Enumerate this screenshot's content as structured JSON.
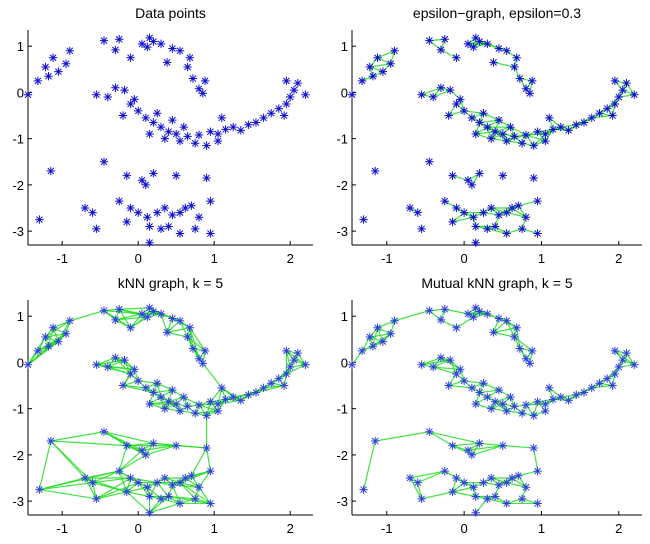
{
  "chart_data": [
    {
      "type": "scatter",
      "title": "Data points",
      "xlim": [
        -1.45,
        2.3
      ],
      "ylim": [
        -3.3,
        1.35
      ],
      "xticks": [
        -1,
        0,
        1,
        2
      ],
      "yticks": [
        1,
        0,
        -1,
        -2,
        -3
      ],
      "graph": "none",
      "marker": "asterisk",
      "marker_color": "#1010d0",
      "edge_color": "#22dd22"
    },
    {
      "type": "scatter",
      "title": "epsilon−graph, epsilon=0.3",
      "xlim": [
        -1.45,
        2.3
      ],
      "ylim": [
        -3.3,
        1.35
      ],
      "xticks": [
        -1,
        0,
        1,
        2
      ],
      "yticks": [
        1,
        0,
        -1,
        -2,
        -3
      ],
      "graph": "epsilon",
      "epsilon": 0.3,
      "marker": "asterisk",
      "marker_color": "#1010d0",
      "edge_color": "#22dd22"
    },
    {
      "type": "scatter",
      "title": "kNN graph, k = 5",
      "xlim": [
        -1.45,
        2.3
      ],
      "ylim": [
        -3.3,
        1.35
      ],
      "xticks": [
        -1,
        0,
        1,
        2
      ],
      "yticks": [
        1,
        0,
        -1,
        -2,
        -3
      ],
      "graph": "knn",
      "k": 5,
      "marker": "asterisk",
      "marker_color": "#3040e0",
      "edge_color": "#22dd22"
    },
    {
      "type": "scatter",
      "title": "Mutual kNN graph, k = 5",
      "xlim": [
        -1.45,
        2.3
      ],
      "ylim": [
        -3.3,
        1.35
      ],
      "xticks": [
        -1,
        0,
        1,
        2
      ],
      "yticks": [
        1,
        0,
        -1,
        -2,
        -3
      ],
      "graph": "mutual_knn",
      "k": 5,
      "marker": "asterisk",
      "marker_color": "#3040e0",
      "edge_color": "#22dd22"
    }
  ],
  "points": [
    [
      -1.45,
      -0.05
    ],
    [
      -1.32,
      0.25
    ],
    [
      -1.22,
      0.55
    ],
    [
      -1.12,
      0.75
    ],
    [
      -1.05,
      0.45
    ],
    [
      -1.18,
      0.35
    ],
    [
      -0.9,
      0.9
    ],
    [
      -0.95,
      0.62
    ],
    [
      -0.45,
      1.12
    ],
    [
      -0.3,
      0.92
    ],
    [
      -0.25,
      1.15
    ],
    [
      -0.1,
      0.75
    ],
    [
      0.05,
      1.05
    ],
    [
      0.15,
      1.18
    ],
    [
      0.2,
      1.1
    ],
    [
      0.3,
      1.05
    ],
    [
      0.38,
      0.65
    ],
    [
      0.45,
      0.95
    ],
    [
      0.55,
      0.9
    ],
    [
      0.65,
      0.55
    ],
    [
      0.72,
      0.3
    ],
    [
      0.8,
      0.08
    ],
    [
      0.85,
      -0.02
    ],
    [
      0.88,
      0.25
    ],
    [
      0.68,
      0.75
    ],
    [
      0.12,
      0.98
    ],
    [
      -0.55,
      -0.05
    ],
    [
      -0.4,
      -0.1
    ],
    [
      -0.3,
      0.1
    ],
    [
      -0.18,
      0.05
    ],
    [
      -0.1,
      -0.25
    ],
    [
      0.0,
      -0.4
    ],
    [
      0.1,
      -0.55
    ],
    [
      0.2,
      -0.65
    ],
    [
      0.3,
      -0.75
    ],
    [
      0.4,
      -0.85
    ],
    [
      0.5,
      -0.9
    ],
    [
      0.55,
      -1.05
    ],
    [
      0.65,
      -0.95
    ],
    [
      0.75,
      -1.1
    ],
    [
      0.8,
      -0.92
    ],
    [
      0.95,
      -0.85
    ],
    [
      1.05,
      -0.9
    ],
    [
      1.15,
      -0.8
    ],
    [
      1.25,
      -0.75
    ],
    [
      1.35,
      -0.82
    ],
    [
      1.45,
      -0.7
    ],
    [
      1.55,
      -0.65
    ],
    [
      1.65,
      -0.55
    ],
    [
      1.75,
      -0.45
    ],
    [
      1.85,
      -0.35
    ],
    [
      1.95,
      -0.25
    ],
    [
      2.0,
      -0.1
    ],
    [
      2.05,
      0.05
    ],
    [
      2.1,
      0.2
    ],
    [
      1.95,
      0.25
    ],
    [
      2.2,
      -0.05
    ],
    [
      1.92,
      -0.5
    ],
    [
      -0.05,
      -0.15
    ],
    [
      0.25,
      -0.45
    ],
    [
      0.45,
      -0.6
    ],
    [
      0.15,
      -0.9
    ],
    [
      0.35,
      -1.0
    ],
    [
      0.6,
      -0.75
    ],
    [
      1.05,
      -1.05
    ],
    [
      0.9,
      -1.15
    ],
    [
      -0.2,
      -0.5
    ],
    [
      1.1,
      -0.55
    ],
    [
      -1.15,
      -1.7
    ],
    [
      -1.3,
      -2.75
    ],
    [
      -0.45,
      -1.5
    ],
    [
      -0.6,
      -2.6
    ],
    [
      -0.7,
      -2.5
    ],
    [
      -0.55,
      -2.95
    ],
    [
      -0.15,
      -1.8
    ],
    [
      0.05,
      -1.9
    ],
    [
      0.1,
      -2.0
    ],
    [
      0.2,
      -1.75
    ],
    [
      0.5,
      -1.8
    ],
    [
      0.9,
      -1.85
    ],
    [
      -0.25,
      -2.35
    ],
    [
      -0.1,
      -2.5
    ],
    [
      0.0,
      -2.6
    ],
    [
      0.12,
      -2.7
    ],
    [
      0.25,
      -2.6
    ],
    [
      0.35,
      -2.5
    ],
    [
      0.45,
      -2.65
    ],
    [
      0.55,
      -2.6
    ],
    [
      0.62,
      -2.5
    ],
    [
      0.7,
      -2.45
    ],
    [
      0.8,
      -2.7
    ],
    [
      0.95,
      -2.35
    ],
    [
      0.15,
      -2.9
    ],
    [
      0.3,
      -2.95
    ],
    [
      0.4,
      -2.9
    ],
    [
      0.55,
      -3.05
    ],
    [
      0.75,
      -2.95
    ],
    [
      0.95,
      -3.05
    ],
    [
      0.15,
      -3.25
    ],
    [
      -0.15,
      -2.8
    ]
  ]
}
